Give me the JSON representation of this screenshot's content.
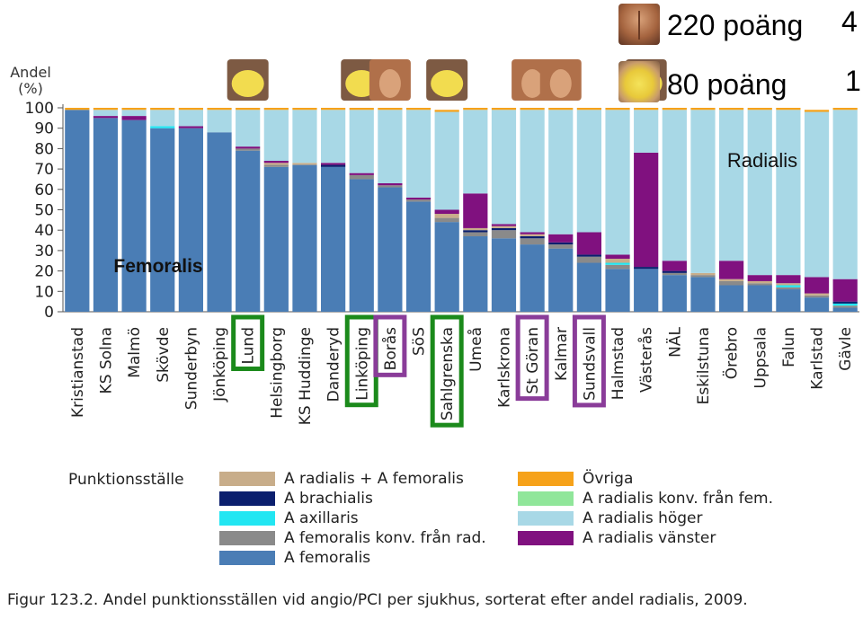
{
  "score_legend": {
    "high_label": "220 poäng",
    "high_count": "4",
    "low_label": "80 poäng",
    "low_count": "1"
  },
  "chart_data": {
    "type": "bar",
    "stacked": true,
    "ylabel": "Andel\n(%)",
    "ylim": [
      0,
      100
    ],
    "yticks": [
      "0",
      "10",
      "20",
      "30",
      "40",
      "50",
      "60",
      "70",
      "80",
      "90",
      "100"
    ],
    "annotations": {
      "top": "Radialis",
      "bottom": "Femoralis"
    },
    "categories": [
      "Kristianstad",
      "KS Solna",
      "Malmö",
      "Skövde",
      "Sunderbyn",
      "Jönköping",
      "Lund",
      "Helsingborg",
      "KS Huddinge",
      "Danderyd",
      "Linköping",
      "Borås",
      "SöS",
      "Sahlgrenska",
      "Umeå",
      "Karlskrona",
      "St Göran",
      "Kalmar",
      "Sundsvall",
      "Halmstad",
      "Västerås",
      "NÄL",
      "Eskilstuna",
      "Örebro",
      "Uppsala",
      "Falun",
      "Karlstad",
      "Gävle"
    ],
    "highlights": {
      "green": [
        "Lund",
        "Linköping",
        "Sahlgrenska"
      ],
      "purple": [
        "Borås",
        "St Göran",
        "Sundsvall"
      ]
    },
    "icon_markers": [
      {
        "category": "Lund",
        "type": "belly"
      },
      {
        "category": "Linköping",
        "type": "belly"
      },
      {
        "category": "Borås",
        "type": "muscle"
      },
      {
        "category": "Sahlgrenska",
        "type": "belly"
      },
      {
        "category": "St Göran",
        "type": "muscle"
      },
      {
        "category": "Kalmar",
        "type": "muscle"
      },
      {
        "category": "Västerås",
        "type": "belly"
      }
    ],
    "legend_title": "Punktionsställe",
    "series": [
      {
        "name": "A femoralis",
        "color": "#4a7db5",
        "values": [
          99,
          95,
          94,
          90,
          90,
          88,
          79,
          71,
          72,
          71,
          65,
          61,
          54,
          44,
          37,
          36,
          33,
          31,
          24,
          21,
          21,
          18,
          17,
          13,
          13,
          11,
          7,
          2
        ]
      },
      {
        "name": "A femoralis konv. från rad.",
        "color": "#8a8a8a",
        "values": [
          0,
          0,
          0,
          0,
          0,
          0,
          1,
          1,
          0,
          0,
          2,
          1,
          1,
          2,
          2,
          4,
          3,
          2,
          3,
          2,
          0,
          1,
          1,
          2,
          1,
          1,
          1,
          1
        ]
      },
      {
        "name": "A axillaris",
        "color": "#22e6f2",
        "values": [
          0,
          0,
          0,
          1,
          0,
          0,
          0,
          0,
          0,
          0,
          0,
          0,
          0,
          0,
          0,
          0,
          0,
          0,
          0,
          1,
          0,
          0,
          0,
          0,
          0,
          1,
          0,
          1
        ]
      },
      {
        "name": "A brachialis",
        "color": "#0b1f6e",
        "values": [
          0,
          0,
          0,
          0,
          0,
          0,
          0,
          0,
          0,
          1,
          0,
          0,
          0,
          0,
          1,
          1,
          1,
          1,
          1,
          0,
          1,
          1,
          0,
          0,
          0,
          0,
          0,
          1
        ]
      },
      {
        "name": "A radialis + A femoralis",
        "color": "#c8ad8a",
        "values": [
          0,
          0,
          0,
          0,
          0,
          0,
          0,
          1,
          1,
          0,
          0,
          0,
          0,
          2,
          1,
          1,
          1,
          0,
          0,
          2,
          0,
          0,
          1,
          1,
          1,
          1,
          1,
          0
        ]
      },
      {
        "name": "A radialis vänster",
        "color": "#80117f",
        "values": [
          0,
          1,
          2,
          0,
          1,
          0,
          1,
          1,
          0,
          1,
          1,
          1,
          1,
          2,
          17,
          1,
          1,
          4,
          11,
          2,
          56,
          5,
          0,
          9,
          3,
          4,
          8,
          11
        ]
      },
      {
        "name": "A radialis höger",
        "color": "#a8d8e6",
        "values": [
          0,
          3,
          3,
          8,
          8,
          11,
          18,
          25,
          26,
          26,
          31,
          36,
          43,
          48,
          41,
          56,
          60,
          61,
          60,
          71,
          21,
          74,
          80,
          74,
          81,
          81,
          81,
          83
        ]
      },
      {
        "name": "A radialis konv. från fem.",
        "color": "#90e69a",
        "values": [
          0,
          0,
          0,
          0,
          0,
          0,
          0,
          0,
          0,
          0,
          0,
          0,
          0,
          0,
          0,
          0,
          0,
          0,
          0,
          0,
          0,
          0,
          0,
          0,
          0,
          0,
          0,
          0
        ]
      },
      {
        "name": "Övriga",
        "color": "#f6a21a",
        "values": [
          1,
          1,
          1,
          1,
          1,
          1,
          1,
          1,
          1,
          1,
          1,
          1,
          1,
          1,
          1,
          1,
          1,
          1,
          1,
          1,
          1,
          1,
          1,
          1,
          1,
          1,
          1,
          1
        ]
      }
    ]
  },
  "legend": {
    "title": "Punktionsställe",
    "left": [
      {
        "label": "A radialis + A femoralis",
        "color": "#c8ad8a"
      },
      {
        "label": "A brachialis",
        "color": "#0b1f6e"
      },
      {
        "label": "A axillaris",
        "color": "#22e6f2"
      },
      {
        "label": "A femoralis konv. från rad.",
        "color": "#8a8a8a"
      },
      {
        "label": "A femoralis",
        "color": "#4a7db5"
      }
    ],
    "right": [
      {
        "label": "Övriga",
        "color": "#f6a21a"
      },
      {
        "label": "A radialis konv. från fem.",
        "color": "#90e69a"
      },
      {
        "label": "A radialis höger",
        "color": "#a8d8e6"
      },
      {
        "label": "A radialis vänster",
        "color": "#80117f"
      }
    ]
  },
  "caption": "Figur 123.2. Andel punktionsställen vid angio/PCI per sjukhus, sorterat efter andel radialis, 2009."
}
